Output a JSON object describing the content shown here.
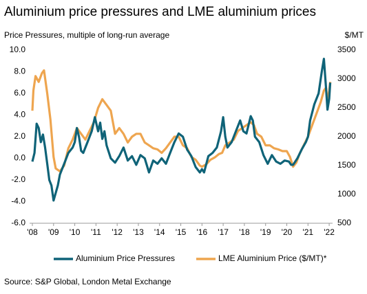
{
  "chart_data": {
    "type": "line",
    "title": "Aluminium price pressures and LME aluminium prices",
    "y_label": "Price Pressures, multiple of long-run average",
    "y2_label": "$/MT",
    "source": "Source: S&P Global, London Metal Exchange",
    "xlim": [
      2007.87,
      2022.16
    ],
    "xticks": [
      {
        "value": 2008,
        "label": "'08"
      },
      {
        "value": 2009,
        "label": "'09"
      },
      {
        "value": 2010,
        "label": "'10"
      },
      {
        "value": 2011,
        "label": "'11"
      },
      {
        "value": 2012,
        "label": "'12"
      },
      {
        "value": 2013,
        "label": "'13"
      },
      {
        "value": 2014,
        "label": "'14"
      },
      {
        "value": 2015,
        "label": "'15"
      },
      {
        "value": 2016,
        "label": "'16"
      },
      {
        "value": 2017,
        "label": "'17"
      },
      {
        "value": 2018,
        "label": "'18"
      },
      {
        "value": 2019,
        "label": "'19"
      },
      {
        "value": 2020,
        "label": "'20"
      },
      {
        "value": 2021,
        "label": "'21"
      },
      {
        "value": 2022,
        "label": "'22"
      }
    ],
    "ylim": [
      -6,
      10
    ],
    "yticks": [
      {
        "value": -6,
        "label": "-6.0"
      },
      {
        "value": -4,
        "label": "-4.0"
      },
      {
        "value": -2,
        "label": "-2.0"
      },
      {
        "value": 0,
        "label": "0.0"
      },
      {
        "value": 2,
        "label": "2.0"
      },
      {
        "value": 4,
        "label": "4.0"
      },
      {
        "value": 6,
        "label": "6.0"
      },
      {
        "value": 8,
        "label": "8.0"
      },
      {
        "value": 10,
        "label": "10.0"
      }
    ],
    "y2lim": [
      500,
      3500
    ],
    "y2ticks": [
      500,
      1000,
      1500,
      2000,
      2500,
      3000,
      3500
    ],
    "grid": false,
    "series": [
      {
        "name": "Aluminium Price Pressures",
        "color": "#0f6378",
        "axis": "y",
        "x": [
          2008.0,
          2008.1,
          2008.2,
          2008.3,
          2008.4,
          2008.5,
          2008.6,
          2008.7,
          2008.8,
          2008.9,
          2009.0,
          2009.1,
          2009.2,
          2009.3,
          2009.5,
          2009.7,
          2009.9,
          2010.0,
          2010.1,
          2010.2,
          2010.3,
          2010.4,
          2010.6,
          2010.8,
          2010.95,
          2011.1,
          2011.2,
          2011.3,
          2011.4,
          2011.5,
          2011.7,
          2011.9,
          2012.1,
          2012.3,
          2012.5,
          2012.7,
          2012.9,
          2013.1,
          2013.3,
          2013.5,
          2013.7,
          2013.9,
          2014.1,
          2014.3,
          2014.5,
          2014.7,
          2014.9,
          2015.1,
          2015.3,
          2015.5,
          2015.7,
          2015.9,
          2016.0,
          2016.1,
          2016.3,
          2016.5,
          2016.7,
          2016.9,
          2017.0,
          2017.1,
          2017.2,
          2017.4,
          2017.6,
          2017.8,
          2017.95,
          2018.1,
          2018.3,
          2018.4,
          2018.5,
          2018.7,
          2018.9,
          2019.1,
          2019.3,
          2019.5,
          2019.7,
          2019.9,
          2020.1,
          2020.2,
          2020.3,
          2020.5,
          2020.7,
          2020.9,
          2021.0,
          2021.1,
          2021.3,
          2021.5,
          2021.65,
          2021.75,
          2021.85,
          2021.92,
          2022.0,
          2022.05
        ],
        "values": [
          -0.3,
          0.5,
          3.2,
          2.8,
          1.5,
          2.2,
          1.0,
          -0.5,
          -2.0,
          -2.5,
          -3.9,
          -3.2,
          -2.5,
          -1.5,
          -0.5,
          0.5,
          1.0,
          1.5,
          2.8,
          2.0,
          0.7,
          0.5,
          1.5,
          2.5,
          3.8,
          2.5,
          3.3,
          1.8,
          2.5,
          1.2,
          0.0,
          -0.4,
          0.2,
          1.0,
          -0.2,
          0.2,
          -0.6,
          0.3,
          0.0,
          -1.3,
          -0.2,
          -0.5,
          0.0,
          -0.5,
          0.5,
          1.5,
          2.3,
          2.0,
          0.8,
          0.2,
          -0.8,
          -1.3,
          -1.0,
          -1.3,
          0.2,
          0.5,
          1.0,
          2.5,
          3.8,
          2.0,
          1.0,
          1.5,
          2.5,
          3.5,
          2.5,
          2.3,
          3.9,
          3.5,
          2.0,
          1.5,
          0.3,
          -0.5,
          0.3,
          -0.3,
          -0.5,
          -0.2,
          -0.3,
          -0.6,
          -0.6,
          0.0,
          0.8,
          1.5,
          2.0,
          3.5,
          5.0,
          6.0,
          8.0,
          9.2,
          6.5,
          4.5,
          5.5,
          7.0
        ]
      },
      {
        "name": "LME Aluminium Price ($/MT)*",
        "color": "#eea54f",
        "axis": "y2",
        "x": [
          2008.0,
          2008.05,
          2008.15,
          2008.3,
          2008.45,
          2008.55,
          2008.7,
          2008.85,
          2009.0,
          2009.1,
          2009.3,
          2009.5,
          2009.7,
          2009.9,
          2010.1,
          2010.3,
          2010.5,
          2010.7,
          2010.9,
          2011.1,
          2011.3,
          2011.5,
          2011.7,
          2011.9,
          2012.1,
          2012.3,
          2012.5,
          2012.7,
          2012.9,
          2013.1,
          2013.3,
          2013.5,
          2013.7,
          2013.9,
          2014.1,
          2014.3,
          2014.5,
          2014.7,
          2014.9,
          2015.1,
          2015.3,
          2015.5,
          2015.7,
          2015.9,
          2016.0,
          2016.2,
          2016.4,
          2016.6,
          2016.8,
          2016.95,
          2017.1,
          2017.3,
          2017.5,
          2017.7,
          2017.9,
          2018.1,
          2018.3,
          2018.45,
          2018.6,
          2018.8,
          2019.0,
          2019.2,
          2019.4,
          2019.6,
          2019.8,
          2020.0,
          2020.15,
          2020.3,
          2020.45,
          2020.6,
          2020.8,
          2021.0,
          2021.2,
          2021.4,
          2021.6,
          2021.75,
          2021.85,
          2021.92,
          2022.0,
          2022.05
        ],
        "values": [
          2450,
          2800,
          3050,
          2950,
          3100,
          3150,
          2750,
          2300,
          1650,
          1450,
          1400,
          1500,
          1800,
          1950,
          2150,
          2050,
          1950,
          2100,
          2250,
          2500,
          2650,
          2550,
          2450,
          2050,
          2150,
          2050,
          1900,
          2000,
          2050,
          2050,
          1900,
          1850,
          1800,
          1780,
          1720,
          1800,
          1900,
          2000,
          2000,
          1850,
          1800,
          1650,
          1600,
          1500,
          1480,
          1520,
          1600,
          1640,
          1700,
          1720,
          1850,
          1900,
          1950,
          2100,
          2150,
          2200,
          2250,
          2200,
          2050,
          2000,
          1850,
          1850,
          1800,
          1780,
          1750,
          1750,
          1650,
          1480,
          1550,
          1700,
          1850,
          2000,
          2200,
          2400,
          2600,
          2800,
          2850,
          2600,
          2800,
          2950
        ]
      }
    ]
  }
}
